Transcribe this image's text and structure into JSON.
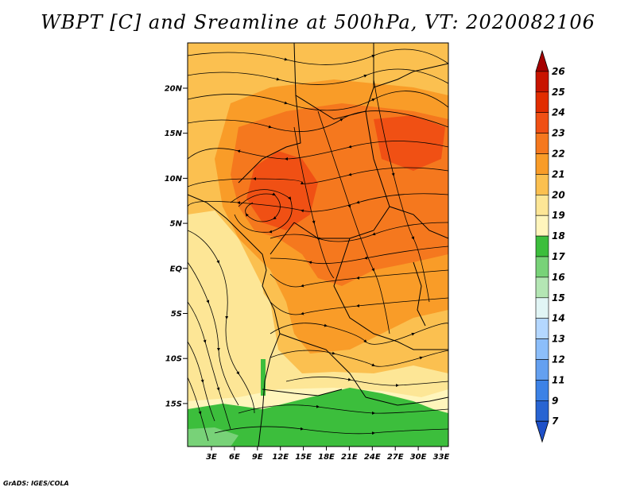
{
  "title": "WBPT [C] and Sreamline at 500hPa, VT: 2020082106",
  "footer": "GrADS: IGES/COLA",
  "map": {
    "lat_ticks": [
      "20N",
      "15N",
      "10N",
      "5N",
      "EQ",
      "5S",
      "10S",
      "15S"
    ],
    "lon_ticks": [
      "3E",
      "6E",
      "9E",
      "12E",
      "15E",
      "18E",
      "21E",
      "24E",
      "27E",
      "30E",
      "33E"
    ],
    "lon_range": [
      0,
      35
    ],
    "lat_range": [
      -20,
      24
    ],
    "variable": "Wet-bulb potential temperature",
    "units": "C",
    "level": "500hPa",
    "valid_time": "2020082106"
  },
  "colorbar": {
    "levels": [
      "26",
      "25",
      "24",
      "23",
      "22",
      "21",
      "20",
      "19",
      "18",
      "17",
      "16",
      "15",
      "14",
      "13",
      "12",
      "11",
      "9",
      "7"
    ],
    "colors": [
      "#a50000",
      "#c81400",
      "#e12d00",
      "#f05014",
      "#f5781e",
      "#f99c28",
      "#fbc050",
      "#fde696",
      "#fff5bc",
      "#3cbe3c",
      "#78d278",
      "#b4e6b4",
      "#e1f5f5",
      "#b4d7ff",
      "#8cbefa",
      "#64a0f0",
      "#3c82e6",
      "#2864d2",
      "#1e50c8"
    ],
    "colors_note": "19 segments from top arrow to bottom arrow"
  },
  "colors": {
    "frame": "#000000",
    "background": "#ffffff"
  }
}
